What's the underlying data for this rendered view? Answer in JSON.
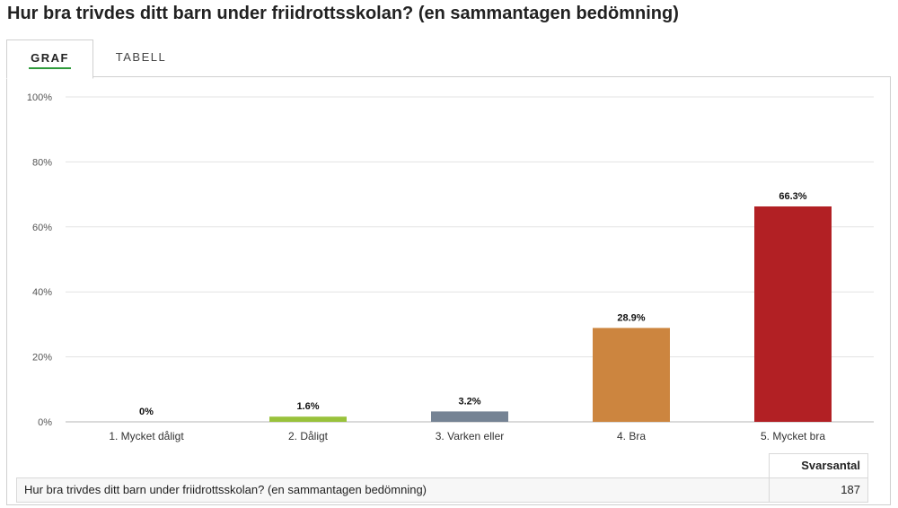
{
  "page": {
    "title": "Hur bra trivdes ditt barn under friidrottsskolan? (en sammantagen bedömning)"
  },
  "tabs": [
    {
      "label": "GRAF",
      "active": true
    },
    {
      "label": "TABELL",
      "active": false
    }
  ],
  "chart_data": {
    "type": "bar",
    "title": "",
    "xlabel": "",
    "ylabel": "",
    "categories": [
      "1. Mycket dåligt",
      "2. Dåligt",
      "3. Varken eller",
      "4. Bra",
      "5. Mycket bra"
    ],
    "values": [
      0,
      1.6,
      3.2,
      28.9,
      66.3
    ],
    "value_labels": [
      "0%",
      "1.6%",
      "3.2%",
      "28.9%",
      "66.3%"
    ],
    "colors": [
      "#aaaaaa",
      "#99c23b",
      "#758394",
      "#cc853f",
      "#b22024"
    ],
    "ylim": [
      0,
      100
    ],
    "yticks": [
      0,
      20,
      40,
      60,
      80,
      100
    ],
    "ytick_labels": [
      "0%",
      "20%",
      "40%",
      "60%",
      "80%",
      "100%"
    ],
    "grid": true,
    "legend": "none"
  },
  "stats": {
    "column_header": "Svarsantal",
    "question": "Hur bra trivdes ditt barn under friidrottsskolan? (en sammantagen bedömning)",
    "count": "187"
  }
}
